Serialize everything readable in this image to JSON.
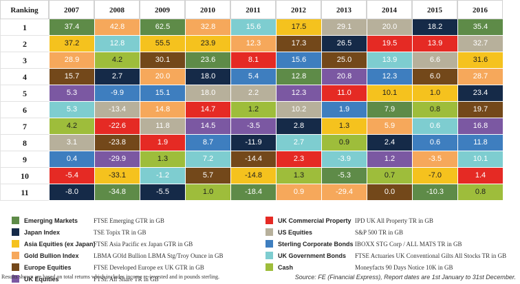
{
  "chart_data": {
    "type": "table",
    "corner_label": "Ranking",
    "columns": [
      "2007",
      "2008",
      "2009",
      "2010",
      "2011",
      "2012",
      "2013",
      "2014",
      "2015",
      "2016"
    ],
    "ranks": [
      "1",
      "2",
      "3",
      "4",
      "5",
      "6",
      "7",
      "8",
      "9",
      "10",
      "11"
    ],
    "cells": [
      [
        [
          "37.4",
          "em"
        ],
        [
          "42.8",
          "au"
        ],
        [
          "62.5",
          "em"
        ],
        [
          "32.8",
          "au"
        ],
        [
          "15.6",
          "gov"
        ],
        [
          "17.5",
          "asia"
        ],
        [
          "29.1",
          "us"
        ],
        [
          "20.0",
          "us"
        ],
        [
          "18.2",
          "jp"
        ],
        [
          "35.4",
          "em"
        ]
      ],
      [
        [
          "37.2",
          "asia"
        ],
        [
          "12.8",
          "gov"
        ],
        [
          "55.5",
          "asia"
        ],
        [
          "23.9",
          "asia"
        ],
        [
          "12.3",
          "au"
        ],
        [
          "17.3",
          "eu"
        ],
        [
          "26.5",
          "jp"
        ],
        [
          "19.5",
          "ukcp"
        ],
        [
          "13.9",
          "ukcp"
        ],
        [
          "32.7",
          "us"
        ]
      ],
      [
        [
          "28.9",
          "au"
        ],
        [
          "4.2",
          "cash"
        ],
        [
          "30.1",
          "eu"
        ],
        [
          "23.6",
          "em"
        ],
        [
          "8.1",
          "ukcp"
        ],
        [
          "15.6",
          "corp"
        ],
        [
          "25.0",
          "eu"
        ],
        [
          "13.9",
          "gov"
        ],
        [
          "6.6",
          "us"
        ],
        [
          "31.6",
          "asia"
        ]
      ],
      [
        [
          "15.7",
          "eu"
        ],
        [
          "2.7",
          "jp"
        ],
        [
          "20.0",
          "au"
        ],
        [
          "18.0",
          "jp"
        ],
        [
          "5.4",
          "corp"
        ],
        [
          "12.8",
          "em"
        ],
        [
          "20.8",
          "uk"
        ],
        [
          "12.3",
          "corp"
        ],
        [
          "6.0",
          "eu"
        ],
        [
          "28.7",
          "au"
        ]
      ],
      [
        [
          "5.3",
          "uk"
        ],
        [
          "-9.9",
          "corp"
        ],
        [
          "15.1",
          "corp"
        ],
        [
          "18.0",
          "us"
        ],
        [
          "2.2",
          "us"
        ],
        [
          "12.3",
          "uk"
        ],
        [
          "11.0",
          "ukcp"
        ],
        [
          "10.1",
          "asia"
        ],
        [
          "1.0",
          "asia"
        ],
        [
          "23.4",
          "jp"
        ]
      ],
      [
        [
          "5.3",
          "gov"
        ],
        [
          "-13.4",
          "us"
        ],
        [
          "14.8",
          "au"
        ],
        [
          "14.7",
          "ukcp"
        ],
        [
          "1.2",
          "cash"
        ],
        [
          "10.2",
          "us"
        ],
        [
          "1.9",
          "corp"
        ],
        [
          "7.9",
          "em"
        ],
        [
          "0.8",
          "cash"
        ],
        [
          "19.7",
          "eu"
        ]
      ],
      [
        [
          "4.2",
          "cash"
        ],
        [
          "-22.6",
          "ukcp"
        ],
        [
          "11.8",
          "us"
        ],
        [
          "14.5",
          "uk"
        ],
        [
          "-3.5",
          "uk"
        ],
        [
          "2.8",
          "jp"
        ],
        [
          "1.3",
          "asia"
        ],
        [
          "5.9",
          "au"
        ],
        [
          "0.6",
          "gov"
        ],
        [
          "16.8",
          "uk"
        ]
      ],
      [
        [
          "3.1",
          "us"
        ],
        [
          "-23.8",
          "eu"
        ],
        [
          "1.9",
          "ukcp"
        ],
        [
          "8.7",
          "corp"
        ],
        [
          "-11.9",
          "jp"
        ],
        [
          "2.7",
          "gov"
        ],
        [
          "0.9",
          "cash"
        ],
        [
          "2.4",
          "jp"
        ],
        [
          "0.6",
          "corp"
        ],
        [
          "11.8",
          "corp"
        ]
      ],
      [
        [
          "0.4",
          "corp"
        ],
        [
          "-29.9",
          "uk"
        ],
        [
          "1.3",
          "cash"
        ],
        [
          "7.2",
          "gov"
        ],
        [
          "-14.4",
          "eu"
        ],
        [
          "2.3",
          "ukcp"
        ],
        [
          "-3.9",
          "gov"
        ],
        [
          "1.2",
          "uk"
        ],
        [
          "-3.5",
          "au"
        ],
        [
          "10.1",
          "gov"
        ]
      ],
      [
        [
          "-5.4",
          "ukcp"
        ],
        [
          "-33.1",
          "asia"
        ],
        [
          "-1.2",
          "gov"
        ],
        [
          "5.7",
          "eu"
        ],
        [
          "-14.8",
          "asia"
        ],
        [
          "1.3",
          "cash"
        ],
        [
          "-5.3",
          "em"
        ],
        [
          "0.7",
          "cash"
        ],
        [
          "-7.0",
          "asia"
        ],
        [
          "1.4",
          "ukcp"
        ]
      ],
      [
        [
          "-8.0",
          "jp"
        ],
        [
          "-34.8",
          "em"
        ],
        [
          "-5.5",
          "jp"
        ],
        [
          "1.0",
          "cash"
        ],
        [
          "-18.4",
          "em"
        ],
        [
          "0.9",
          "au"
        ],
        [
          "-29.4",
          "au"
        ],
        [
          "0.0",
          "eu"
        ],
        [
          "-10.3",
          "em"
        ],
        [
          "0.8",
          "cash"
        ]
      ]
    ],
    "legend": [
      {
        "key": "em",
        "name": "Emerging Markets",
        "index": "FTSE Emerging GTR in GB",
        "color": "#5e8b48",
        "text": "light"
      },
      {
        "key": "jp",
        "name": "Japan Index",
        "index": "TSE Topix TR in GB",
        "color": "#152a48",
        "text": "light"
      },
      {
        "key": "asia",
        "name": "Asia Equities (ex Japan)",
        "index": "FTSE Asia Pacific ex Japan GTR in GB",
        "color": "#f5c21e",
        "text": "dark"
      },
      {
        "key": "au",
        "name": "Gold Bullion Index",
        "index": "LBMA GOld Bullion LBMA Stg/Troy Ounce in GB",
        "color": "#f6a85b",
        "text": "light"
      },
      {
        "key": "eu",
        "name": "Europe Equities",
        "index": "FTSE Developed Europe ex UK GTR in GB",
        "color": "#73481a",
        "text": "light"
      },
      {
        "key": "uk",
        "name": "UK Equities",
        "index": "FTSE All Share TR in GB",
        "color": "#7b58a2",
        "text": "light"
      },
      {
        "key": "ukcp",
        "name": "UK Commercial Property",
        "index": "IPD UK All Property TR in GB",
        "color": "#e52a24",
        "text": "light"
      },
      {
        "key": "us",
        "name": "US Equities",
        "index": "S&P 500 TR in GB",
        "color": "#b7b09b",
        "text": "light"
      },
      {
        "key": "corp",
        "name": "Sterling Corporate Bonds",
        "index": "IBOXX STG Corp / ALL MATS TR in GB",
        "color": "#3e7ebf",
        "text": "light"
      },
      {
        "key": "gov",
        "name": "UK Government Bonds",
        "index": "FTSE Actuaries UK Conventional Gilts All Stocks TR in GB",
        "color": "#7ecdd0",
        "text": "light"
      },
      {
        "key": "cash",
        "name": "Cash",
        "index": "Moneyfacts 90 Days Notice 10K in GB",
        "color": "#9ebd3b",
        "text": "dark"
      }
    ]
  },
  "note": "Results shown are based on total returns which includes income re-invested and in pounds sterling.",
  "source": "Source: FE (Financial Express), Report dates are 1st January to 31st December."
}
